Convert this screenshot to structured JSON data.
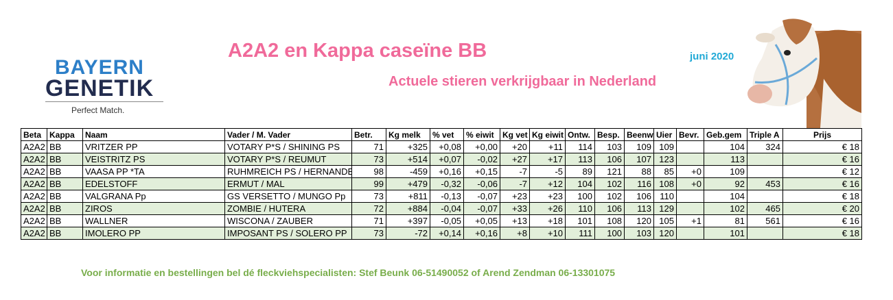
{
  "logo": {
    "line1": "BAYERN",
    "line2": "GENETIK",
    "tagline": "Perfect Match."
  },
  "header": {
    "title": "A2A2 en Kappa caseïne BB",
    "date": "juni 2020",
    "subtitle": "Actuele stieren verkrijgbaar in Nederland"
  },
  "table": {
    "columns": [
      "Beta",
      "Kappa",
      "Naam",
      "Vader / M. Vader",
      "Betr.",
      "Kg melk",
      "% vet",
      "% eiwit",
      "Kg vet",
      "Kg eiwit",
      "Ontw.",
      "Besp.",
      "Beenw",
      "Uier",
      "Bevr.",
      "Geb.gem",
      "Triple A",
      "Prijs"
    ],
    "rows": [
      [
        "A2A2",
        "BB",
        "VRITZER PP",
        "VOTARY P*S / SHINING PS",
        "71",
        "+325",
        "+0,08",
        "+0,00",
        "+20",
        "+11",
        "114",
        "103",
        "109",
        "109",
        null,
        "104",
        "324",
        "€ 18"
      ],
      [
        "A2A2",
        "BB",
        "VEISTRITZ PS",
        "VOTARY P*S / REUMUT",
        "73",
        "+514",
        "+0,07",
        "-0,02",
        "+27",
        "+17",
        "113",
        "106",
        "107",
        "123",
        null,
        "113",
        null,
        "€ 16"
      ],
      [
        "A2A2",
        "BB",
        "VAASA PP *TA",
        "RUHMREICH PS / HERNANDE",
        "98",
        "-459",
        "+0,16",
        "+0,15",
        "-7",
        "-5",
        "89",
        "121",
        "88",
        "85",
        "+0",
        "109",
        null,
        "€ 12"
      ],
      [
        "A2A2",
        "BB",
        "EDELSTOFF",
        "ERMUT / MAL",
        "99",
        "+479",
        "-0,32",
        "-0,06",
        "-7",
        "+12",
        "104",
        "102",
        "116",
        "108",
        "+0",
        "92",
        "453",
        "€ 16"
      ],
      [
        "A2A2",
        "BB",
        "VALGRANA Pp",
        "GS VERSETTO / MUNGO Pp",
        "73",
        "+811",
        "-0,13",
        "-0,07",
        "+23",
        "+23",
        "100",
        "102",
        "106",
        "110",
        null,
        "104",
        null,
        "€ 18"
      ],
      [
        "A2A2",
        "BB",
        "ZIROS",
        "ZOMBIE / HUTERA",
        "72",
        "+884",
        "-0,04",
        "-0,07",
        "+33",
        "+26",
        "110",
        "106",
        "113",
        "129",
        null,
        "102",
        "465",
        "€ 20"
      ],
      [
        "A2A2",
        "BB",
        "WALLNER",
        "WISCONA / ZAUBER",
        "71",
        "+397",
        "-0,05",
        "+0,05",
        "+13",
        "+18",
        "101",
        "108",
        "120",
        "105",
        "+1",
        "81",
        "561",
        "€ 16"
      ],
      [
        "A2A2",
        "BB",
        "IMOLERO PP",
        "IMPOSANT PS / SOLERO PP",
        "73",
        "-72",
        "+0,14",
        "+0,16",
        "+8",
        "+10",
        "111",
        "100",
        "103",
        "120",
        null,
        "101",
        null,
        "€ 18"
      ]
    ]
  },
  "footer": {
    "text": "Voor informatie en bestellingen bel dé fleckviehspecialisten: Stef Beunk 06-51490052 of Arend Zendman 06-13301075"
  }
}
